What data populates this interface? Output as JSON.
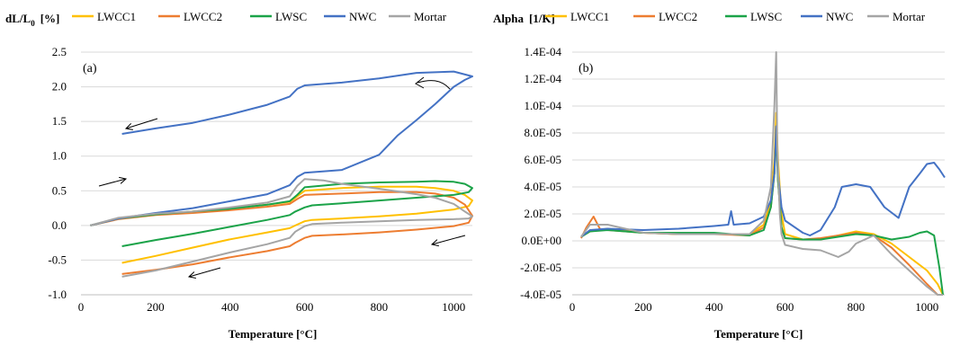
{
  "colors": {
    "LWCC1": "#FFC000",
    "LWCC2": "#ED7D31",
    "LWSC": "#1BA349",
    "NWC": "#4472C4",
    "Mortar": "#A5A5A5"
  },
  "legend": [
    "LWCC1",
    "LWCC2",
    "LWSC",
    "NWC",
    "Mortar"
  ],
  "chart_data": [
    {
      "type": "line",
      "panel_label": "(a)",
      "ylabel_main": "dL/L",
      "ylabel_sub": "0",
      "ylabel_unit": "[%]",
      "xlabel": "Temperature  [°C]",
      "xlim": [
        0,
        1050
      ],
      "ylim": [
        -1.0,
        2.5
      ],
      "xticks": [
        "0",
        "200",
        "400",
        "600",
        "800",
        "1000"
      ],
      "yticks": [
        "-1.0",
        "-0.5",
        "0.0",
        "0.5",
        "1.0",
        "1.5",
        "2.0",
        "2.5"
      ],
      "legend_position": "top",
      "series": [
        {
          "name": "LWCC1",
          "x": [
            25,
            100,
            200,
            300,
            400,
            500,
            560,
            580,
            600,
            700,
            800,
            900,
            950,
            1000,
            1030,
            1050,
            1040,
            1000,
            900,
            800,
            700,
            620,
            600,
            575,
            560,
            500,
            400,
            300,
            200,
            110
          ],
          "y": [
            0,
            0.1,
            0.16,
            0.2,
            0.25,
            0.3,
            0.34,
            0.42,
            0.5,
            0.54,
            0.56,
            0.56,
            0.54,
            0.5,
            0.44,
            0.36,
            0.28,
            0.23,
            0.17,
            0.13,
            0.1,
            0.08,
            0.06,
            0.0,
            -0.04,
            -0.1,
            -0.2,
            -0.32,
            -0.44,
            -0.54
          ]
        },
        {
          "name": "LWCC2",
          "x": [
            25,
            100,
            200,
            300,
            400,
            500,
            560,
            580,
            600,
            700,
            800,
            900,
            950,
            1000,
            1030,
            1050,
            1040,
            1000,
            900,
            800,
            700,
            620,
            600,
            575,
            560,
            500,
            400,
            300,
            200,
            110
          ],
          "y": [
            0,
            0.09,
            0.15,
            0.18,
            0.22,
            0.27,
            0.31,
            0.38,
            0.44,
            0.46,
            0.48,
            0.48,
            0.46,
            0.4,
            0.3,
            0.14,
            0.04,
            -0.01,
            -0.06,
            -0.1,
            -0.13,
            -0.15,
            -0.18,
            -0.25,
            -0.3,
            -0.37,
            -0.46,
            -0.56,
            -0.64,
            -0.7
          ]
        },
        {
          "name": "LWSC",
          "x": [
            25,
            100,
            200,
            300,
            400,
            500,
            560,
            580,
            600,
            700,
            800,
            900,
            950,
            1000,
            1030,
            1050,
            1040,
            1000,
            900,
            800,
            700,
            620,
            600,
            575,
            560,
            500,
            400,
            300,
            200,
            110
          ],
          "y": [
            0,
            0.1,
            0.16,
            0.2,
            0.24,
            0.3,
            0.35,
            0.44,
            0.55,
            0.6,
            0.62,
            0.63,
            0.64,
            0.63,
            0.6,
            0.54,
            0.48,
            0.44,
            0.4,
            0.36,
            0.32,
            0.29,
            0.26,
            0.2,
            0.15,
            0.08,
            -0.02,
            -0.12,
            -0.21,
            -0.3
          ]
        },
        {
          "name": "NWC",
          "x": [
            25,
            100,
            200,
            300,
            400,
            500,
            560,
            580,
            600,
            700,
            800,
            850,
            900,
            950,
            1000,
            1030,
            1050,
            1000,
            900,
            800,
            700,
            600,
            580,
            560,
            500,
            400,
            300,
            200,
            110
          ],
          "y": [
            0,
            0.1,
            0.18,
            0.25,
            0.35,
            0.45,
            0.58,
            0.7,
            0.76,
            0.8,
            1.02,
            1.3,
            1.52,
            1.75,
            2.0,
            2.1,
            2.15,
            2.22,
            2.2,
            2.12,
            2.06,
            2.02,
            1.97,
            1.86,
            1.74,
            1.6,
            1.48,
            1.4,
            1.32
          ]
        },
        {
          "name": "Mortar",
          "x": [
            25,
            100,
            200,
            300,
            400,
            500,
            560,
            580,
            600,
            650,
            700,
            800,
            900,
            950,
            1000,
            1030,
            1050,
            1040,
            1000,
            900,
            800,
            700,
            620,
            600,
            575,
            560,
            500,
            400,
            300,
            200,
            110
          ],
          "y": [
            0,
            0.11,
            0.17,
            0.2,
            0.26,
            0.33,
            0.42,
            0.57,
            0.67,
            0.65,
            0.6,
            0.53,
            0.45,
            0.4,
            0.31,
            0.2,
            0.13,
            0.1,
            0.09,
            0.08,
            0.06,
            0.04,
            0.02,
            -0.01,
            -0.09,
            -0.18,
            -0.27,
            -0.39,
            -0.52,
            -0.65,
            -0.74
          ]
        }
      ]
    },
    {
      "type": "line",
      "panel_label": "(b)",
      "ylabel_main": "Alpha",
      "ylabel_unit": "[1/K]",
      "xlabel": "Temperature  [°C]",
      "xlim": [
        0,
        1050
      ],
      "ylim": [
        -4e-05,
        0.00014
      ],
      "xticks": [
        "0",
        "200",
        "400",
        "600",
        "800",
        "1000"
      ],
      "yticks": [
        "-4.0E-05",
        "-2.0E-05",
        "0.0E+00",
        "2.0E-05",
        "4.0E-05",
        "6.0E-05",
        "8.0E-05",
        "1.0E-04",
        "1.2E-04",
        "1.4E-04"
      ],
      "legend_position": "top",
      "series": [
        {
          "name": "LWCC1",
          "x": [
            25,
            50,
            100,
            200,
            300,
            400,
            500,
            540,
            560,
            570,
            575,
            580,
            590,
            600,
            650,
            700,
            750,
            800,
            850,
            900,
            950,
            1000,
            1030,
            1045
          ],
          "y": [
            3e-06,
            7e-06,
            9e-06,
            6e-06,
            5e-06,
            5e-06,
            5e-06,
            1.2e-05,
            3e-05,
            6e-05,
            9.5e-05,
            6e-05,
            2e-05,
            5e-06,
            1e-06,
            1e-06,
            4e-06,
            7e-06,
            5e-06,
            -2e-06,
            -1.2e-05,
            -2.2e-05,
            -3.2e-05,
            -4e-05
          ]
        },
        {
          "name": "LWCC2",
          "x": [
            25,
            40,
            60,
            80,
            100,
            200,
            300,
            400,
            500,
            540,
            560,
            570,
            575,
            580,
            590,
            600,
            650,
            700,
            750,
            800,
            850,
            900,
            950,
            1000,
            1030,
            1045
          ],
          "y": [
            2e-06,
            1e-05,
            1.8e-05,
            8e-06,
            8e-06,
            6e-06,
            5e-06,
            5e-06,
            4e-06,
            1e-05,
            2.5e-05,
            5e-05,
            8e-05,
            4.5e-05,
            1e-05,
            2e-06,
            1e-06,
            2e-06,
            4e-06,
            6e-06,
            4e-06,
            -5e-06,
            -1.8e-05,
            -3.2e-05,
            -4e-05,
            -4e-05
          ]
        },
        {
          "name": "LWSC",
          "x": [
            25,
            50,
            100,
            200,
            300,
            400,
            500,
            540,
            560,
            570,
            575,
            580,
            590,
            600,
            650,
            700,
            750,
            800,
            850,
            900,
            950,
            980,
            1000,
            1020,
            1035,
            1045
          ],
          "y": [
            3e-06,
            7e-06,
            8e-06,
            6e-06,
            6e-06,
            6e-06,
            4e-06,
            8e-06,
            2.5e-05,
            5e-05,
            8e-05,
            4.5e-05,
            1e-05,
            2e-06,
            1e-06,
            1e-06,
            3e-06,
            5e-06,
            4e-06,
            1e-06,
            3e-06,
            6e-06,
            7e-06,
            4e-06,
            -2e-05,
            -4e-05
          ]
        },
        {
          "name": "NWC",
          "x": [
            25,
            50,
            100,
            200,
            300,
            400,
            440,
            448,
            455,
            500,
            540,
            560,
            570,
            575,
            580,
            590,
            600,
            650,
            670,
            700,
            740,
            760,
            800,
            840,
            880,
            920,
            950,
            980,
            1000,
            1020,
            1035,
            1050
          ],
          "y": [
            3e-06,
            8e-06,
            9e-06,
            8e-06,
            9e-06,
            1.1e-05,
            1.2e-05,
            2.2e-05,
            1.2e-05,
            1.3e-05,
            1.8e-05,
            3e-05,
            5e-05,
            8.5e-05,
            5e-05,
            2.5e-05,
            1.5e-05,
            6e-06,
            4e-06,
            8e-06,
            2.5e-05,
            4e-05,
            4.2e-05,
            4e-05,
            2.5e-05,
            1.7e-05,
            4e-05,
            5e-05,
            5.7e-05,
            5.8e-05,
            5.3e-05,
            4.7e-05
          ]
        },
        {
          "name": "Mortar",
          "x": [
            25,
            50,
            100,
            200,
            300,
            400,
            500,
            540,
            560,
            570,
            575,
            578,
            585,
            590,
            600,
            650,
            700,
            750,
            780,
            800,
            850,
            900,
            950,
            1000,
            1030,
            1045
          ],
          "y": [
            3e-06,
            1.2e-05,
            1.2e-05,
            6e-06,
            5e-06,
            5e-06,
            5e-06,
            1.5e-05,
            4e-05,
            0.0001,
            0.00014,
            7e-05,
            2e-05,
            5e-06,
            -3e-06,
            -6e-06,
            -7e-06,
            -1.2e-05,
            -8e-06,
            -2e-06,
            4e-06,
            -1e-05,
            -2.2e-05,
            -3.4e-05,
            -4e-05,
            -4e-05
          ]
        }
      ]
    }
  ]
}
